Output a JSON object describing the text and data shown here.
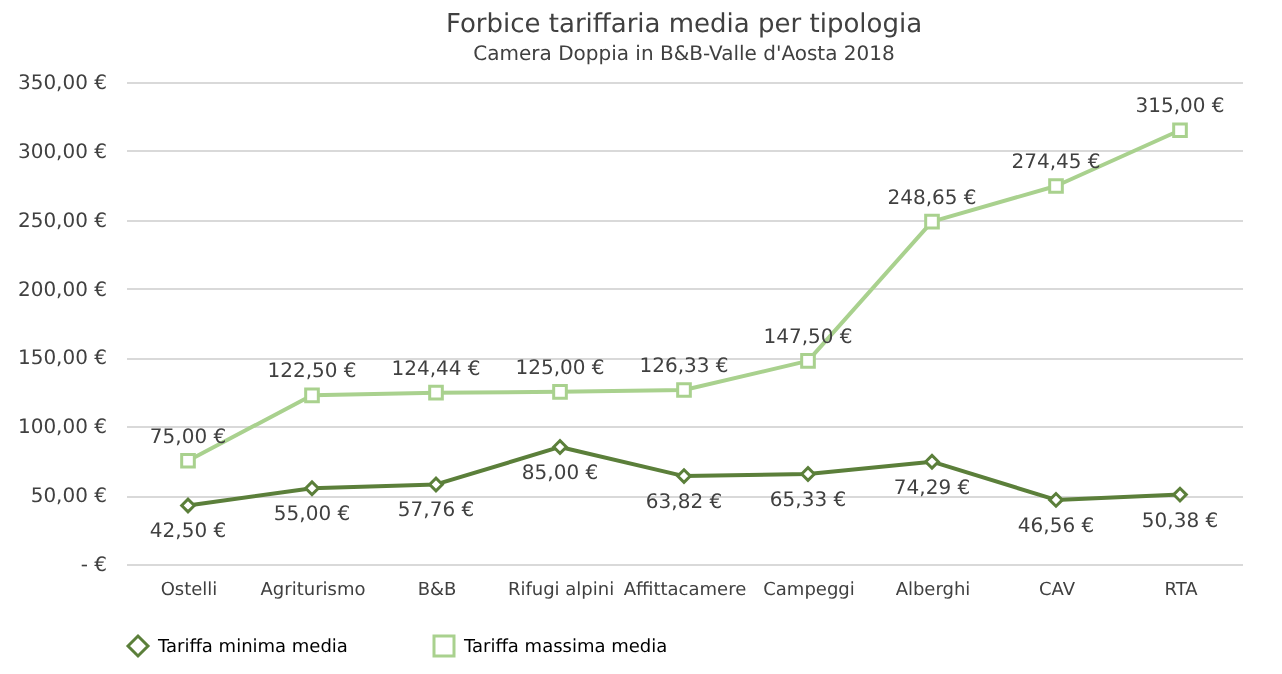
{
  "chart_data": {
    "type": "line",
    "title": "Forbice tariffaria media per tipologia",
    "subtitle": "Camera Doppia in B&B-Valle d'Aosta 2018",
    "categories": [
      "Ostelli",
      "Agriturismo",
      "B&B",
      "Rifugi alpini",
      "Affittacamere",
      "Campeggi",
      "Alberghi",
      "CAV",
      "RTA"
    ],
    "series": [
      {
        "name": "Tariffa minima media",
        "color": "#5b7f3a",
        "marker": "diamond",
        "values": [
          42.5,
          55,
          57.76,
          85,
          63.82,
          65.33,
          74.29,
          46.56,
          50.38
        ],
        "value_labels": [
          "42,50 €",
          "55,00 €",
          "57,76 €",
          "85,00 €",
          "63,82 €",
          "65,33 €",
          "74,29 €",
          "46,56 €",
          "50,38 €"
        ]
      },
      {
        "name": "Tariffa massima media",
        "color": "#a9d18e",
        "marker": "square",
        "values": [
          75,
          122.5,
          124.44,
          125,
          126.33,
          147.5,
          248.65,
          274.45,
          315
        ],
        "value_labels": [
          "75,00 €",
          "122,50 €",
          "124,44 €",
          "125,00 €",
          "126,33 €",
          "147,50 €",
          "248,65 €",
          "274,45 €",
          "315,00 €"
        ]
      }
    ],
    "ylim": [
      0,
      350
    ],
    "yticks": [
      {
        "value": 0,
        "label": "-   €"
      },
      {
        "value": 50,
        "label": "50,00 €"
      },
      {
        "value": 100,
        "label": "100,00 €"
      },
      {
        "value": 150,
        "label": "150,00 €"
      },
      {
        "value": 200,
        "label": "200,00 €"
      },
      {
        "value": 250,
        "label": "250,00 €"
      },
      {
        "value": 300,
        "label": "300,00 €"
      },
      {
        "value": 350,
        "label": "350,00 €"
      }
    ],
    "grid": "y",
    "legend": "bottom",
    "line_style": "solid"
  }
}
